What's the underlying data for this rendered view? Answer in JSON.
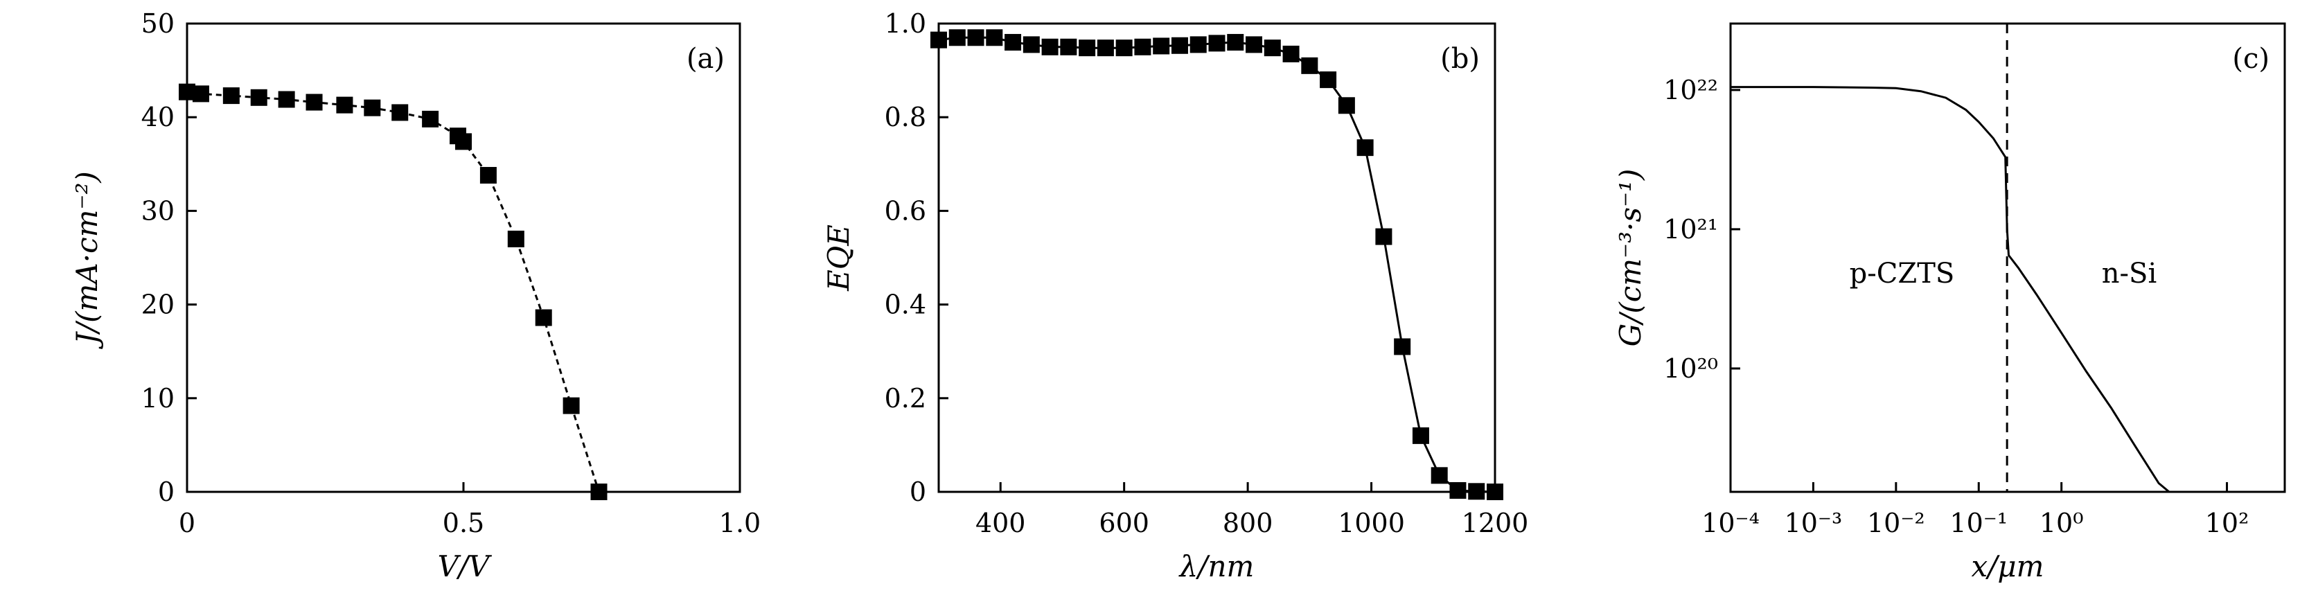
{
  "chart_data": [
    {
      "type": "line",
      "panel_label": "(a)",
      "xlabel": "V/V",
      "ylabel": "J/(mA·cm⁻²)",
      "xlim": [
        0,
        1.0
      ],
      "ylim": [
        0,
        50
      ],
      "x_ticks": [
        0,
        0.5,
        1.0
      ],
      "x_tick_labels": [
        "0",
        "0.5",
        "1.0"
      ],
      "y_ticks": [
        0,
        10,
        20,
        30,
        40,
        50
      ],
      "y_tick_labels": [
        "0",
        "10",
        "20",
        "30",
        "40",
        "50"
      ],
      "markers": "square",
      "grid": false,
      "series": [
        {
          "x": [
            0.0,
            0.025,
            0.08,
            0.13,
            0.18,
            0.23,
            0.285,
            0.335,
            0.385,
            0.44,
            0.49,
            0.5,
            0.545,
            0.595,
            0.645,
            0.695,
            0.745
          ],
          "y": [
            42.7,
            42.5,
            42.3,
            42.1,
            41.9,
            41.6,
            41.3,
            41.0,
            40.5,
            39.8,
            38.0,
            37.4,
            33.8,
            27.0,
            18.6,
            9.2,
            0.0
          ]
        }
      ]
    },
    {
      "type": "line",
      "panel_label": "(b)",
      "xlabel": "λ/nm",
      "ylabel": "EQE",
      "xlim": [
        300,
        1200
      ],
      "ylim": [
        0,
        1.0
      ],
      "x_ticks": [
        400,
        600,
        800,
        1000,
        1200
      ],
      "x_tick_labels": [
        "400",
        "600",
        "800",
        "1000",
        "1200"
      ],
      "y_ticks": [
        0,
        0.2,
        0.4,
        0.6,
        0.8,
        1.0
      ],
      "y_tick_labels": [
        "0",
        "0.2",
        "0.4",
        "0.6",
        "0.8",
        "1.0"
      ],
      "markers": "square",
      "grid": false,
      "series": [
        {
          "x": [
            300,
            330,
            360,
            390,
            420,
            450,
            480,
            510,
            540,
            570,
            600,
            630,
            660,
            690,
            720,
            750,
            780,
            810,
            840,
            870,
            900,
            930,
            960,
            990,
            1020,
            1050,
            1080,
            1110,
            1140,
            1170,
            1200
          ],
          "y": [
            0.965,
            0.97,
            0.97,
            0.97,
            0.96,
            0.955,
            0.95,
            0.95,
            0.948,
            0.948,
            0.948,
            0.95,
            0.952,
            0.953,
            0.955,
            0.958,
            0.96,
            0.955,
            0.948,
            0.935,
            0.91,
            0.88,
            0.825,
            0.735,
            0.545,
            0.31,
            0.12,
            0.035,
            0.003,
            0.001,
            0.0
          ]
        }
      ]
    },
    {
      "type": "line",
      "panel_label": "(c)",
      "xlabel": "x/μm",
      "ylabel": "G/(cm⁻³·s⁻¹)",
      "x_scale": "log",
      "y_scale": "log",
      "xlim": [
        0.0001,
        500
      ],
      "ylim": [
        1.3e+19,
        3e+22
      ],
      "x_tick_labels": [
        "10⁻⁴",
        "10⁻³",
        "10⁻²",
        "10⁻¹",
        "10⁰",
        "10²"
      ],
      "x_tick_values": [
        0.0001,
        0.001,
        0.01,
        0.1,
        1,
        100
      ],
      "y_tick_labels": [
        "10²⁰",
        "10²¹",
        "10²²"
      ],
      "y_tick_values": [
        1e+20,
        1e+21,
        1e+22
      ],
      "region_labels": [
        "p-CZTS",
        "n-Si"
      ],
      "interface_x": 0.22,
      "grid": false,
      "series": [
        {
          "x": [
            0.0001,
            0.001,
            0.005,
            0.01,
            0.02,
            0.04,
            0.07,
            0.1,
            0.15,
            0.21,
            0.22,
            0.23,
            0.3,
            0.5,
            1,
            2,
            4,
            8,
            15,
            20
          ],
          "y": [
            1.05e+22,
            1.05e+22,
            1.04e+22,
            1.03e+22,
            9.8e+21,
            8.8e+21,
            7.2e+21,
            5.9e+21,
            4.5e+21,
            3.3e+21,
            1e+21,
            6.5e+20,
            5.3e+20,
            3.4e+20,
            1.8e+20,
            9.5e+19,
            5.2e+19,
            2.7e+19,
            1.5e+19,
            1.3e+19
          ]
        }
      ]
    }
  ]
}
